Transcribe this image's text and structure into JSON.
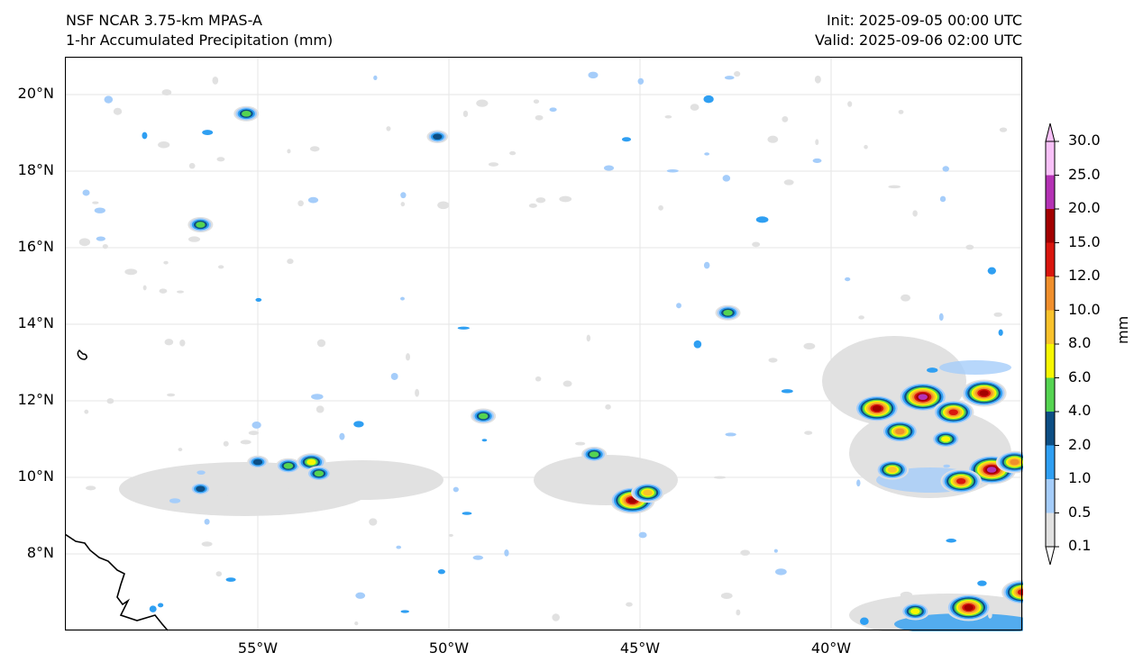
{
  "titles": {
    "left_line1": "NSF NCAR 3.75-km MPAS-A",
    "left_line2": "1-hr Accumulated Precipitation (mm)",
    "right_line1": "Init: 2025-09-05 00:00 UTC",
    "right_line2": "Valid: 2025-09-06 02:00 UTC"
  },
  "axes": {
    "lat_labels": [
      "20°N",
      "18°N",
      "16°N",
      "14°N",
      "12°N",
      "10°N",
      "8°N"
    ],
    "lon_labels": [
      "55°W",
      "50°W",
      "45°W",
      "40°W"
    ]
  },
  "colorbar": {
    "unit": "mm",
    "levels": [
      "0.1",
      "0.5",
      "1.0",
      "2.0",
      "4.0",
      "6.0",
      "8.0",
      "10.0",
      "12.0",
      "15.0",
      "20.0",
      "25.0",
      "30.0"
    ],
    "colors": [
      "#e1e1e1",
      "#a5cdfa",
      "#2f9ff2",
      "#0d4e84",
      "#55d451",
      "#f7f700",
      "#f9c22b",
      "#f08f2c",
      "#d9160e",
      "#a30000",
      "#b432b4",
      "#f8c1f8"
    ]
  },
  "precip_cells": [
    {
      "lon": -55.0,
      "lat": 10.4,
      "class": 3
    },
    {
      "lon": -54.2,
      "lat": 10.3,
      "class": 4
    },
    {
      "lon": -53.6,
      "lat": 10.4,
      "class": 5
    },
    {
      "lon": -56.5,
      "lat": 9.7,
      "class": 3
    },
    {
      "lon": -53.4,
      "lat": 10.1,
      "class": 4
    },
    {
      "lon": -45.2,
      "lat": 9.4,
      "class": 9
    },
    {
      "lon": -44.8,
      "lat": 9.6,
      "class": 6
    },
    {
      "lon": -38.8,
      "lat": 11.8,
      "class": 9
    },
    {
      "lon": -37.6,
      "lat": 12.1,
      "class": 10
    },
    {
      "lon": -36.8,
      "lat": 11.7,
      "class": 8
    },
    {
      "lon": -36.0,
      "lat": 12.2,
      "class": 9
    },
    {
      "lon": -38.2,
      "lat": 11.2,
      "class": 7
    },
    {
      "lon": -37.0,
      "lat": 11.0,
      "class": 5
    },
    {
      "lon": -35.8,
      "lat": 10.2,
      "class": 10
    },
    {
      "lon": -36.6,
      "lat": 9.9,
      "class": 8
    },
    {
      "lon": -38.4,
      "lat": 10.2,
      "class": 6
    },
    {
      "lon": -35.2,
      "lat": 10.4,
      "class": 7
    },
    {
      "lon": -36.4,
      "lat": 6.6,
      "class": 9
    },
    {
      "lon": -35.0,
      "lat": 7.0,
      "class": 8
    },
    {
      "lon": -37.8,
      "lat": 6.5,
      "class": 5
    },
    {
      "lon": -42.7,
      "lat": 14.3,
      "class": 4
    },
    {
      "lon": -46.2,
      "lat": 10.6,
      "class": 4
    },
    {
      "lon": -50.3,
      "lat": 18.9,
      "class": 3
    },
    {
      "lon": -55.3,
      "lat": 19.5,
      "class": 4
    },
    {
      "lon": -56.5,
      "lat": 16.6,
      "class": 4
    },
    {
      "lon": -49.1,
      "lat": 11.6,
      "class": 4
    }
  ]
}
